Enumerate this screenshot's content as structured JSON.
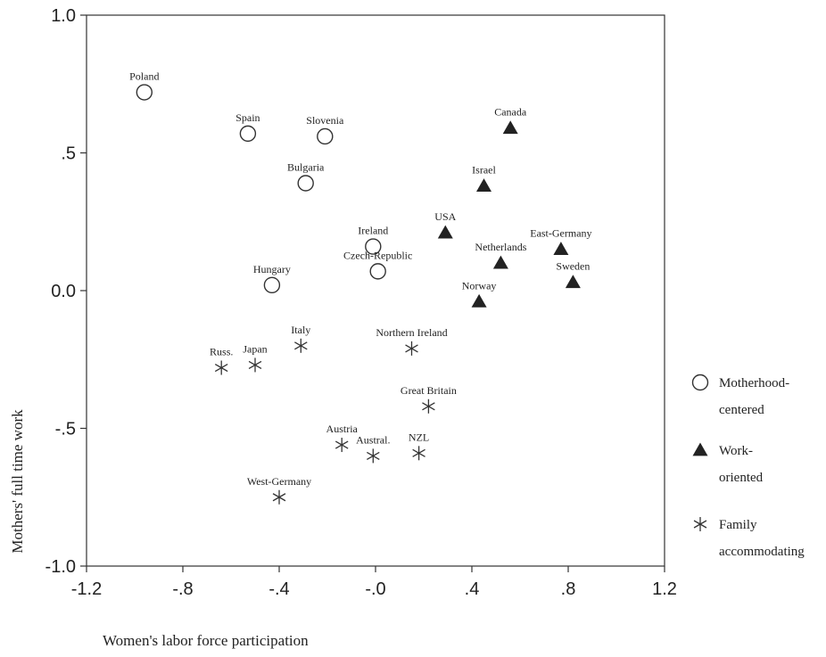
{
  "chart_data": {
    "type": "scatter",
    "xlabel": "Women's labor force participation",
    "ylabel": "Mothers' full time work",
    "xlim": [
      -1.2,
      1.2
    ],
    "ylim": [
      -1.0,
      1.0
    ],
    "x_ticks": [
      {
        "value": -1.2,
        "label": "-1.2"
      },
      {
        "value": -0.8,
        "label": "-.8"
      },
      {
        "value": -0.4,
        "label": "-.4"
      },
      {
        "value": 0.0,
        "label": "-.0"
      },
      {
        "value": 0.4,
        "label": ".4"
      },
      {
        "value": 0.8,
        "label": ".8"
      },
      {
        "value": 1.2,
        "label": "1.2"
      }
    ],
    "y_ticks": [
      {
        "value": 1.0,
        "label": "1.0"
      },
      {
        "value": 0.5,
        "label": ".5"
      },
      {
        "value": 0.0,
        "label": "0.0"
      },
      {
        "value": -0.5,
        "label": "-.5"
      },
      {
        "value": -1.0,
        "label": "-1.0"
      }
    ],
    "grid": false,
    "legend_position": "right",
    "series": [
      {
        "name": "Motherhood-centered",
        "legend_lines": [
          "Motherhood-",
          "centered"
        ],
        "marker": "open-circle",
        "color": "#222222",
        "points": [
          {
            "label": "Poland",
            "x": -0.96,
            "y": 0.72
          },
          {
            "label": "Spain",
            "x": -0.53,
            "y": 0.57
          },
          {
            "label": "Slovenia",
            "x": -0.21,
            "y": 0.56
          },
          {
            "label": "Bulgaria",
            "x": -0.29,
            "y": 0.39
          },
          {
            "label": "Ireland",
            "x": -0.01,
            "y": 0.16
          },
          {
            "label": "Czech-Republic",
            "x": 0.01,
            "y": 0.07
          },
          {
            "label": "Hungary",
            "x": -0.43,
            "y": 0.02
          }
        ]
      },
      {
        "name": "Work-oriented",
        "legend_lines": [
          "Work-",
          "oriented"
        ],
        "marker": "filled-triangle",
        "color": "#222222",
        "points": [
          {
            "label": "Canada",
            "x": 0.56,
            "y": 0.59
          },
          {
            "label": "Israel",
            "x": 0.45,
            "y": 0.38
          },
          {
            "label": "USA",
            "x": 0.29,
            "y": 0.21
          },
          {
            "label": "Netherlands",
            "x": 0.52,
            "y": 0.1
          },
          {
            "label": "East-Germany",
            "x": 0.77,
            "y": 0.15
          },
          {
            "label": "Sweden",
            "x": 0.82,
            "y": 0.03
          },
          {
            "label": "Norway",
            "x": 0.43,
            "y": -0.04
          }
        ]
      },
      {
        "name": "Family accommodating",
        "legend_lines": [
          "Family",
          "accommodating"
        ],
        "marker": "asterisk",
        "color": "#222222",
        "points": [
          {
            "label": "Russ.",
            "x": -0.64,
            "y": -0.28
          },
          {
            "label": "Japan",
            "x": -0.5,
            "y": -0.27
          },
          {
            "label": "Italy",
            "x": -0.31,
            "y": -0.2
          },
          {
            "label": "Northern Ireland",
            "x": 0.15,
            "y": -0.21
          },
          {
            "label": "Great Britain",
            "x": 0.22,
            "y": -0.42
          },
          {
            "label": "Austria",
            "x": -0.14,
            "y": -0.56
          },
          {
            "label": "Austral.",
            "x": -0.01,
            "y": -0.6
          },
          {
            "label": "NZL",
            "x": 0.18,
            "y": -0.59
          },
          {
            "label": "West-Germany",
            "x": -0.4,
            "y": -0.75
          }
        ]
      }
    ]
  }
}
